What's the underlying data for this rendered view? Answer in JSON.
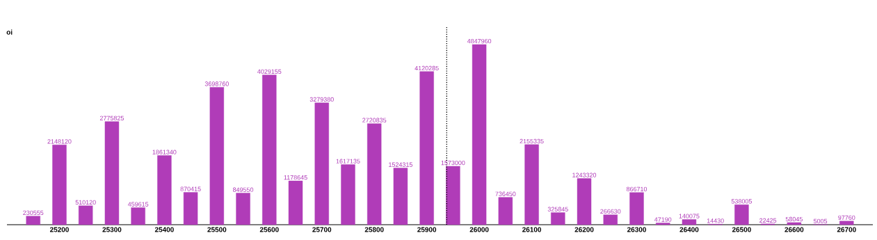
{
  "chart_data": {
    "type": "bar",
    "ylabel": "oi",
    "color": "#b03cb8",
    "data_labels": true,
    "tick_labels": "x",
    "x": [
      25150,
      25200,
      25250,
      25300,
      25350,
      25400,
      25450,
      25500,
      25550,
      25600,
      25650,
      25700,
      25750,
      25800,
      25850,
      25900,
      25950,
      26000,
      26050,
      26100,
      26150,
      26200,
      26250,
      26300,
      26350,
      26400,
      26450,
      26500,
      26550,
      26600,
      26650,
      26700
    ],
    "values": [
      230555,
      2148120,
      510120,
      2775825,
      459615,
      1861340,
      870415,
      3698760,
      849550,
      4029155,
      1178645,
      3279380,
      1617135,
      2720835,
      1524315,
      4120285,
      1573000,
      4847960,
      736450,
      2155335,
      325845,
      1243320,
      266630,
      866710,
      47190,
      140075,
      14430,
      538005,
      22425,
      58045,
      5005,
      97760
    ],
    "xlim": [
      25100,
      26750
    ],
    "xticks": [
      25200,
      25300,
      25400,
      25500,
      25600,
      25700,
      25800,
      25900,
      26000,
      26100,
      26200,
      26300,
      26400,
      26500,
      26600,
      26700
    ],
    "ref_lines": [
      {
        "axis": "x",
        "value": 25938,
        "line_style": "dotted",
        "color": "#000000"
      }
    ]
  }
}
